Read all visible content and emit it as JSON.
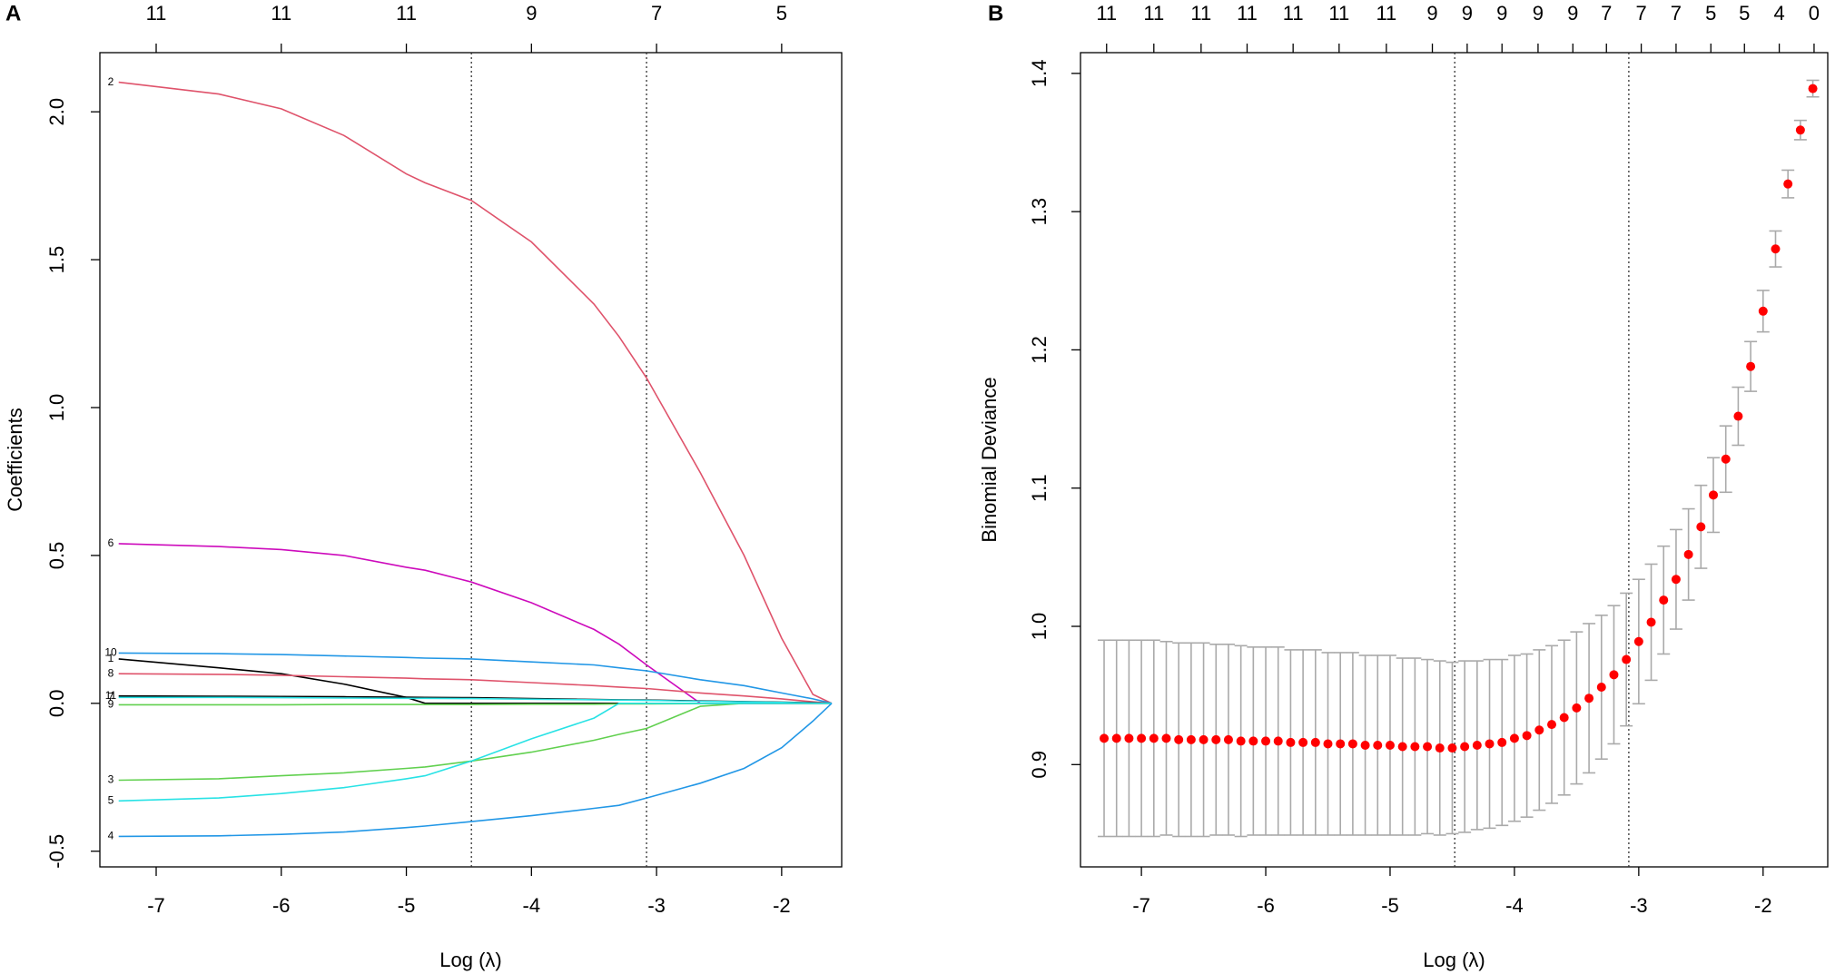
{
  "chart_data": [
    {
      "type": "line",
      "panel": "A",
      "xlabel": "Log (λ)",
      "ylabel": "Coefficients",
      "xlim": [
        -7.45,
        -1.52
      ],
      "ylim": [
        -0.553,
        2.2
      ],
      "xticks": [
        -7,
        -6,
        -5,
        -4,
        -3,
        -2
      ],
      "yticks": [
        -0.5,
        {
          "value": 0,
          "label": "0.0"
        },
        0.5,
        {
          "value": 1,
          "label": "1.0"
        },
        1.5,
        {
          "value": 2,
          "label": "2.0"
        }
      ],
      "top_ticks": [
        {
          "value": -7,
          "label": "11"
        },
        {
          "value": -6,
          "label": "11"
        },
        {
          "value": -5,
          "label": "11"
        },
        {
          "value": -4,
          "label": "9"
        },
        {
          "value": -3,
          "label": "7"
        },
        {
          "value": -2,
          "label": "5"
        }
      ],
      "vlines": [
        -4.48,
        -3.08
      ],
      "x": [
        -7.3,
        -6.5,
        -6,
        -5.5,
        -5,
        -4.85,
        -4.48,
        -4,
        -3.5,
        -3.3,
        -3.08,
        -2.65,
        -2.3,
        -2,
        -1.75,
        -1.6
      ],
      "series": [
        {
          "name": "2",
          "color": "#DF536B",
          "values": [
            2.1,
            2.06,
            2.01,
            1.92,
            1.79,
            1.76,
            1.7,
            1.56,
            1.35,
            1.24,
            1.1,
            0.78,
            0.5,
            0.22,
            0.03,
            0
          ]
        },
        {
          "name": "6",
          "color": "#CD0BBC",
          "values": [
            0.54,
            0.53,
            0.52,
            0.5,
            0.46,
            0.45,
            0.41,
            0.34,
            0.25,
            0.2,
            0.13,
            0,
            0,
            0,
            0,
            0
          ]
        },
        {
          "name": "10",
          "color": "#2297E6",
          "values": [
            0.17,
            0.168,
            0.165,
            0.16,
            0.155,
            0.153,
            0.15,
            0.14,
            0.13,
            0.12,
            0.11,
            0.08,
            0.06,
            0.035,
            0.015,
            0
          ]
        },
        {
          "name": "1",
          "color": "#000000",
          "values": [
            0.15,
            0.12,
            0.1,
            0.065,
            0.02,
            0,
            0,
            0,
            0,
            0,
            0,
            0,
            0,
            0,
            0,
            0
          ]
        },
        {
          "name": "8",
          "color": "#DF536B",
          "values": [
            0.1,
            0.098,
            0.095,
            0.09,
            0.085,
            0.083,
            0.08,
            0.07,
            0.06,
            0.055,
            0.05,
            0.035,
            0.025,
            0.015,
            0.005,
            0
          ]
        },
        {
          "name": "11",
          "color": "#000000",
          "values": [
            0.025,
            0.024,
            0.023,
            0.022,
            0.021,
            0.02,
            0.019,
            0.016,
            0.013,
            0.012,
            0.011,
            0.008,
            0.006,
            0.004,
            0.002,
            0
          ]
        },
        {
          "name": "7",
          "color": "#28E2E5",
          "values": [
            0.02,
            0.02,
            0.019,
            0.018,
            0.017,
            0.017,
            0.016,
            0.014,
            0.012,
            0.011,
            0.01,
            0.007,
            0.005,
            0.003,
            0.001,
            0
          ]
        },
        {
          "name": "9",
          "color": "#61D04F",
          "values": [
            -0.005,
            -0.005,
            -0.005,
            -0.004,
            -0.004,
            -0.004,
            -0.004,
            -0.003,
            -0.003,
            -0.002,
            -0.002,
            -0.001,
            0,
            0,
            0,
            0
          ]
        },
        {
          "name": "3",
          "color": "#61D04F",
          "values": [
            -0.26,
            -0.255,
            -0.245,
            -0.235,
            -0.22,
            -0.215,
            -0.195,
            -0.165,
            -0.125,
            -0.105,
            -0.085,
            -0.01,
            0,
            0,
            0,
            0
          ]
        },
        {
          "name": "5",
          "color": "#28E2E5",
          "values": [
            -0.33,
            -0.32,
            -0.305,
            -0.285,
            -0.255,
            -0.245,
            -0.195,
            -0.12,
            -0.05,
            0,
            0,
            0,
            0,
            0,
            0,
            0
          ]
        },
        {
          "name": "4",
          "color": "#2297E6",
          "values": [
            -0.45,
            -0.448,
            -0.443,
            -0.435,
            -0.42,
            -0.415,
            -0.4,
            -0.38,
            -0.355,
            -0.345,
            -0.32,
            -0.27,
            -0.22,
            -0.15,
            -0.06,
            0
          ]
        }
      ]
    },
    {
      "type": "errorbar",
      "panel": "B",
      "xlabel": "Log (λ)",
      "ylabel": "Binomial Deviance",
      "xlim": [
        -7.49,
        -1.48
      ],
      "ylim": [
        0.826,
        1.415
      ],
      "xticks": [
        -7,
        -6,
        -5,
        -4,
        -3,
        -2
      ],
      "yticks": [
        0.9,
        {
          "value": 1,
          "label": "1.0"
        },
        1.1,
        1.2,
        1.3,
        1.4
      ],
      "top_ticks": [
        {
          "value": -7.28,
          "label": "11"
        },
        {
          "value": -6.9,
          "label": "11"
        },
        {
          "value": -6.52,
          "label": "11"
        },
        {
          "value": -6.15,
          "label": "11"
        },
        {
          "value": -5.78,
          "label": "11"
        },
        {
          "value": -5.41,
          "label": "11"
        },
        {
          "value": -5.03,
          "label": "11"
        },
        {
          "value": -4.66,
          "label": "9"
        },
        {
          "value": -4.38,
          "label": "9"
        },
        {
          "value": -4.1,
          "label": "9"
        },
        {
          "value": -3.81,
          "label": "9"
        },
        {
          "value": -3.53,
          "label": "9"
        },
        {
          "value": -3.26,
          "label": "7"
        },
        {
          "value": -2.98,
          "label": "7"
        },
        {
          "value": -2.7,
          "label": "7"
        },
        {
          "value": -2.42,
          "label": "5"
        },
        {
          "value": -2.15,
          "label": "5"
        },
        {
          "value": -1.87,
          "label": "4"
        },
        {
          "value": -1.59,
          "label": "0"
        }
      ],
      "vlines": [
        -4.48,
        -3.08
      ],
      "color": "#FF0000",
      "error_color": "#AAAAAA",
      "x": [
        -7.3,
        -7.2,
        -7.1,
        -7.0,
        -6.9,
        -6.8,
        -6.7,
        -6.6,
        -6.5,
        -6.4,
        -6.3,
        -6.2,
        -6.1,
        -6.0,
        -5.9,
        -5.8,
        -5.7,
        -5.6,
        -5.5,
        -5.4,
        -5.3,
        -5.2,
        -5.1,
        -5.0,
        -4.9,
        -4.8,
        -4.7,
        -4.6,
        -4.5,
        -4.4,
        -4.3,
        -4.2,
        -4.1,
        -4.0,
        -3.9,
        -3.8,
        -3.7,
        -3.6,
        -3.5,
        -3.4,
        -3.3,
        -3.2,
        -3.1,
        -3.0,
        -2.9,
        -2.8,
        -2.7,
        -2.6,
        -2.5,
        -2.4,
        -2.3,
        -2.2,
        -2.1,
        -2.0,
        -1.9,
        -1.8,
        -1.7,
        -1.6
      ],
      "values": [
        0.919,
        0.919,
        0.919,
        0.919,
        0.919,
        0.919,
        0.918,
        0.918,
        0.918,
        0.918,
        0.918,
        0.917,
        0.917,
        0.917,
        0.917,
        0.916,
        0.916,
        0.916,
        0.915,
        0.915,
        0.915,
        0.914,
        0.914,
        0.914,
        0.913,
        0.913,
        0.913,
        0.912,
        0.912,
        0.913,
        0.914,
        0.915,
        0.916,
        0.919,
        0.921,
        0.925,
        0.929,
        0.934,
        0.941,
        0.948,
        0.956,
        0.965,
        0.976,
        0.989,
        1.003,
        1.019,
        1.034,
        1.052,
        1.072,
        1.095,
        1.121,
        1.152,
        1.188,
        1.228,
        1.273,
        1.32,
        1.359,
        1.389
      ],
      "errors": [
        0.071,
        0.071,
        0.071,
        0.071,
        0.071,
        0.07,
        0.07,
        0.07,
        0.07,
        0.069,
        0.069,
        0.069,
        0.068,
        0.068,
        0.068,
        0.067,
        0.067,
        0.067,
        0.066,
        0.066,
        0.066,
        0.065,
        0.065,
        0.065,
        0.064,
        0.064,
        0.063,
        0.063,
        0.062,
        0.062,
        0.061,
        0.061,
        0.06,
        0.06,
        0.059,
        0.058,
        0.057,
        0.056,
        0.055,
        0.054,
        0.052,
        0.05,
        0.048,
        0.045,
        0.042,
        0.039,
        0.036,
        0.033,
        0.03,
        0.027,
        0.024,
        0.021,
        0.018,
        0.015,
        0.013,
        0.01,
        0.007,
        0.006
      ]
    }
  ]
}
